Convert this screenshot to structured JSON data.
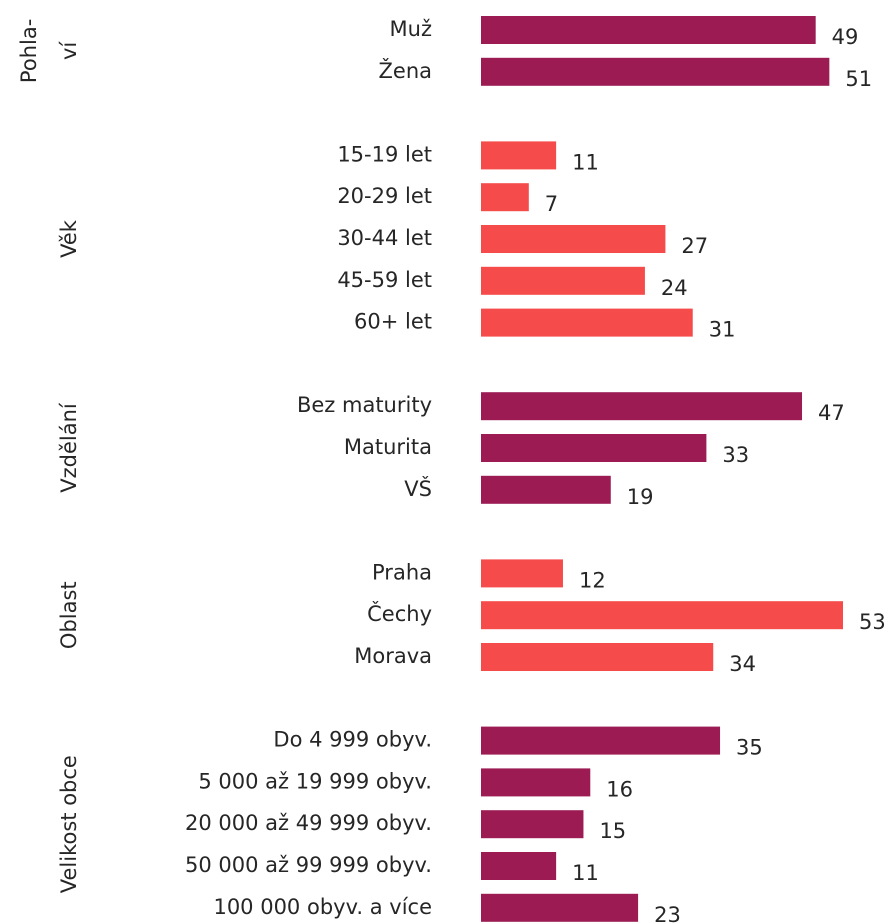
{
  "chart_data": {
    "type": "bar",
    "orientation": "horizontal",
    "groups": [
      {
        "label": [
          "Pohla-",
          "ví"
        ],
        "color": "#9b1b52",
        "categories": [
          "Muž",
          "Žena"
        ],
        "values": [
          49,
          51
        ]
      },
      {
        "label": [
          "Věk"
        ],
        "color": "#f54b4a",
        "categories": [
          "15-19 let",
          "20-29 let",
          "30-44 let",
          "45-59 let",
          "60+ let"
        ],
        "values": [
          11,
          7,
          27,
          24,
          31
        ]
      },
      {
        "label": [
          "Vzdělání"
        ],
        "color": "#9b1b52",
        "categories": [
          "Bez maturity",
          "Maturita",
          "VŠ"
        ],
        "values": [
          47,
          33,
          19
        ]
      },
      {
        "label": [
          "Oblast"
        ],
        "color": "#f54b4a",
        "categories": [
          "Praha",
          "Čechy",
          "Morava"
        ],
        "values": [
          12,
          53,
          34
        ]
      },
      {
        "label": [
          "Velikost obce"
        ],
        "color": "#9b1b52",
        "categories": [
          "Do 4 999 obyv.",
          "5 000 až 19 999 obyv.",
          "20 000 až 49 999 obyv.",
          "50 000 až 99 999 obyv.",
          "100 000 obyv. a více"
        ],
        "values": [
          35,
          16,
          15,
          11,
          23
        ]
      }
    ]
  }
}
